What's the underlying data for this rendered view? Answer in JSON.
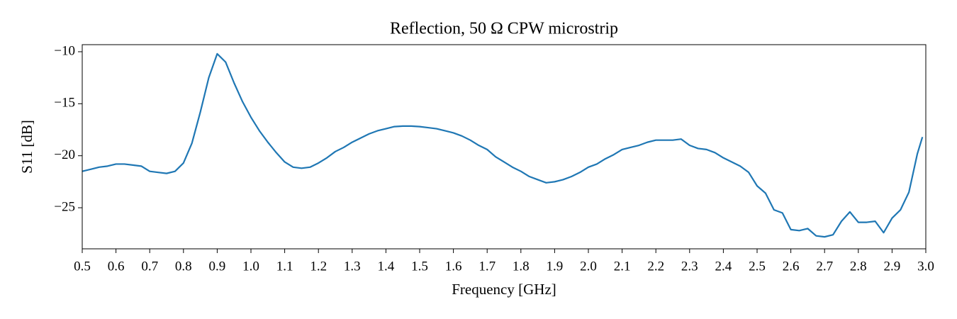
{
  "chart_data": {
    "type": "line",
    "title": "Reflection, 50 Ω CPW microstrip",
    "xlabel": "Frequency [GHz]",
    "ylabel": "S11 [dB]",
    "x": [
      0.5,
      0.525,
      0.55,
      0.575,
      0.6,
      0.625,
      0.65,
      0.675,
      0.7,
      0.725,
      0.75,
      0.775,
      0.8,
      0.825,
      0.85,
      0.875,
      0.9,
      0.925,
      0.95,
      0.975,
      1.0,
      1.025,
      1.05,
      1.075,
      1.1,
      1.125,
      1.15,
      1.175,
      1.2,
      1.225,
      1.25,
      1.275,
      1.3,
      1.325,
      1.35,
      1.375,
      1.4,
      1.425,
      1.45,
      1.475,
      1.5,
      1.525,
      1.55,
      1.575,
      1.6,
      1.625,
      1.65,
      1.675,
      1.7,
      1.725,
      1.75,
      1.775,
      1.8,
      1.825,
      1.85,
      1.875,
      1.9,
      1.925,
      1.95,
      1.975,
      2.0,
      2.025,
      2.05,
      2.075,
      2.1,
      2.125,
      2.15,
      2.175,
      2.2,
      2.225,
      2.25,
      2.275,
      2.3,
      2.325,
      2.35,
      2.375,
      2.4,
      2.425,
      2.45,
      2.475,
      2.5,
      2.525,
      2.55,
      2.575,
      2.6,
      2.625,
      2.65,
      2.675,
      2.7,
      2.725,
      2.75,
      2.775,
      2.8,
      2.825,
      2.85,
      2.875,
      2.9,
      2.925,
      2.95,
      2.975,
      2.99
    ],
    "series": [
      {
        "name": "S11",
        "color": "#1f77b4",
        "values": [
          -21.5,
          -21.3,
          -21.1,
          -21.0,
          -20.8,
          -20.8,
          -20.9,
          -21.0,
          -21.5,
          -21.6,
          -21.7,
          -21.5,
          -20.7,
          -18.8,
          -15.8,
          -12.5,
          -10.2,
          -11.0,
          -13.0,
          -14.8,
          -16.3,
          -17.6,
          -18.7,
          -19.7,
          -20.6,
          -21.1,
          -21.2,
          -21.1,
          -20.7,
          -20.2,
          -19.6,
          -19.2,
          -18.7,
          -18.3,
          -17.9,
          -17.6,
          -17.4,
          -17.2,
          -17.15,
          -17.15,
          -17.2,
          -17.3,
          -17.4,
          -17.6,
          -17.8,
          -18.1,
          -18.5,
          -19.0,
          -19.4,
          -20.1,
          -20.6,
          -21.1,
          -21.5,
          -22.0,
          -22.3,
          -22.6,
          -22.5,
          -22.3,
          -22.0,
          -21.6,
          -21.1,
          -20.8,
          -20.3,
          -19.9,
          -19.4,
          -19.2,
          -19.0,
          -18.7,
          -18.5,
          -18.5,
          -18.5,
          -18.4,
          -19.0,
          -19.3,
          -19.4,
          -19.7,
          -20.2,
          -20.6,
          -21.0,
          -21.6,
          -22.9,
          -23.6,
          -25.2,
          -25.5,
          -27.1,
          -27.2,
          -27.0,
          -27.7,
          -27.8,
          -27.6,
          -26.3,
          -25.4,
          -26.4,
          -26.4,
          -26.3,
          -27.4,
          -26.0,
          -25.2,
          -23.5,
          -19.8,
          -18.2
        ]
      }
    ],
    "xlim": [
      0.5,
      3.0
    ],
    "ylim": [
      -28.95,
      -9.32
    ],
    "xticks": [
      0.5,
      0.6,
      0.7,
      0.8,
      0.9,
      {
        "value": 1.0,
        "label": "1.0"
      },
      1.1,
      1.2,
      1.3,
      1.4,
      1.5,
      1.6,
      1.7,
      1.8,
      1.9,
      {
        "value": 2.0,
        "label": "2.0"
      },
      2.1,
      2.2,
      2.3,
      2.4,
      2.5,
      2.6,
      2.7,
      2.8,
      2.9,
      {
        "value": 3.0,
        "label": "3.0"
      }
    ],
    "yticks": [
      {
        "value": -10,
        "label": "−10"
      },
      {
        "value": -15,
        "label": "−15"
      },
      {
        "value": -20,
        "label": "−20"
      },
      {
        "value": -25,
        "label": "−25"
      }
    ],
    "grid": false
  }
}
